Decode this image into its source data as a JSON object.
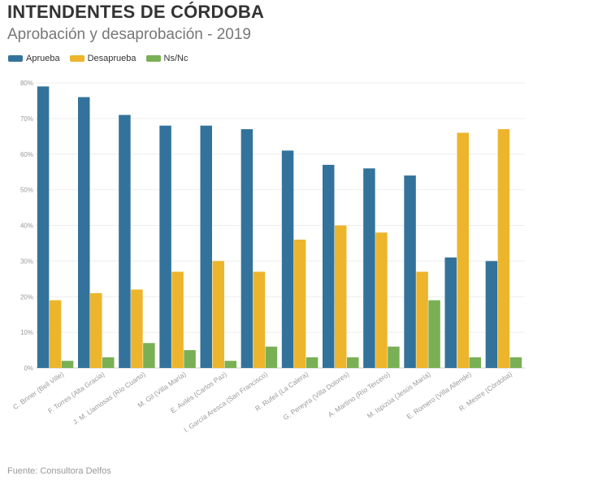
{
  "title": "INTENDENTES DE CÓRDOBA",
  "subtitle": "Aprobación y desaprobación - 2019",
  "source": "Fuente: Consultora Delfos",
  "legend": [
    {
      "label": "Aprueba",
      "color": "#33739b"
    },
    {
      "label": "Desaprueba",
      "color": "#ecb52c"
    },
    {
      "label": "Ns/Nc",
      "color": "#7ab055"
    }
  ],
  "chart_data": {
    "type": "bar",
    "categories": [
      "C. Briner (Bell Ville)",
      "F. Torres (Alta Gracia)",
      "J. M. Llamosas (Río Cuarto)",
      "M. Gil (Villa María)",
      "E. Avilés (Carlos Paz)",
      "I. García Aresca (San Francisco)",
      "R. Rufeil (La Calera)",
      "G. Pereyra (Villa Dolores)",
      "A. Martino (Río Tercero)",
      "M. Ispizúa (Jesús María)",
      "E. Romero (Villa Allende)",
      "R. Mestre (Córdoba)"
    ],
    "series": [
      {
        "name": "Aprueba",
        "color": "#33739b",
        "values": [
          79,
          76,
          71,
          68,
          68,
          67,
          61,
          57,
          56,
          54,
          31,
          30
        ]
      },
      {
        "name": "Desaprueba",
        "color": "#ecb52c",
        "values": [
          19,
          21,
          22,
          27,
          30,
          27,
          36,
          40,
          38,
          27,
          66,
          67
        ]
      },
      {
        "name": "Ns/Nc",
        "color": "#7ab055",
        "values": [
          2,
          3,
          7,
          5,
          2,
          6,
          3,
          3,
          6,
          19,
          3,
          3
        ]
      }
    ],
    "ylim": [
      0,
      80
    ],
    "yticks": [
      "0%",
      "10%",
      "20%",
      "30%",
      "40%",
      "50%",
      "60%",
      "70%",
      "80%"
    ],
    "grid": true,
    "legend_position": "top-left"
  }
}
